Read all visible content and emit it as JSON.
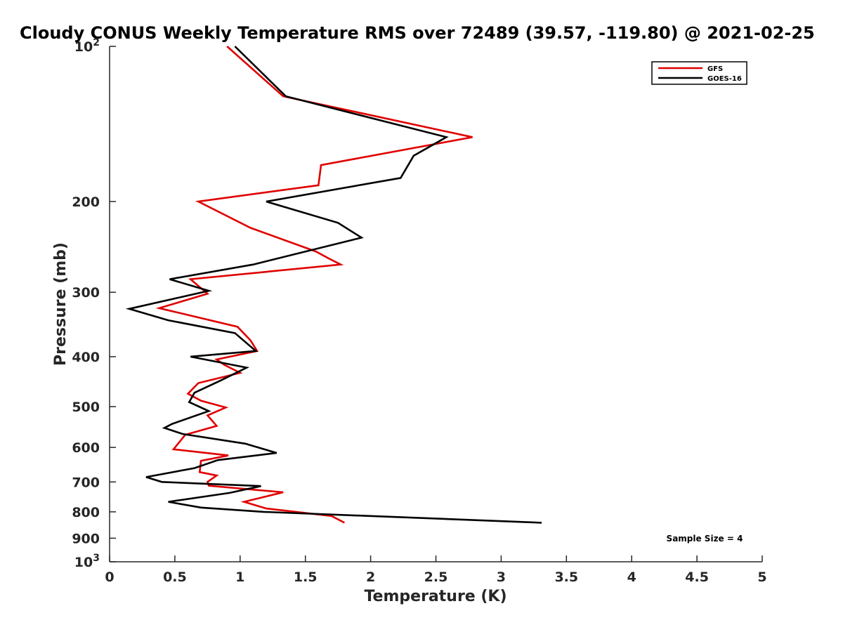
{
  "chart_data": {
    "type": "line",
    "title": "Cloudy CONUS Weekly Temperature RMS over 72489 (39.57, -119.80) @ 2021-02-25",
    "xlabel": "Temperature (K)",
    "ylabel": "Pressure (mb)",
    "xlim": [
      0,
      5
    ],
    "ylim": [
      100,
      1000
    ],
    "yscale": "log",
    "y_reversed": true,
    "xticks": [
      0,
      0.5,
      1,
      1.5,
      2,
      2.5,
      3,
      3.5,
      4,
      4.5,
      5
    ],
    "xtick_labels": [
      "0",
      "0.5",
      "1",
      "1.5",
      "2",
      "2.5",
      "3",
      "3.5",
      "4",
      "4.5",
      "5"
    ],
    "yticks": [
      {
        "value": 100,
        "base": "10",
        "exp": "2"
      },
      {
        "value": 200,
        "label": "200"
      },
      {
        "value": 300,
        "label": "300"
      },
      {
        "value": 400,
        "label": "400"
      },
      {
        "value": 500,
        "label": "500"
      },
      {
        "value": 600,
        "label": "600"
      },
      {
        "value": 700,
        "label": "700"
      },
      {
        "value": 800,
        "label": "800"
      },
      {
        "value": 900,
        "label": "900"
      },
      {
        "value": 1000,
        "base": "10",
        "exp": "3"
      }
    ],
    "legend_position": "top-right",
    "grid": false,
    "annotation": "Sample Size = 4",
    "series": [
      {
        "name": "GFS",
        "color": "#e00000",
        "points": [
          [
            0.9,
            100
          ],
          [
            1.33,
            125
          ],
          [
            2.78,
            150
          ],
          [
            1.62,
            170
          ],
          [
            1.6,
            186
          ],
          [
            0.68,
            200
          ],
          [
            1.08,
            225
          ],
          [
            1.58,
            250
          ],
          [
            1.68,
            258
          ],
          [
            1.77,
            265
          ],
          [
            0.62,
            283
          ],
          [
            0.75,
            302
          ],
          [
            0.38,
            322
          ],
          [
            0.98,
            350
          ],
          [
            1.08,
            372
          ],
          [
            1.13,
            390
          ],
          [
            0.82,
            405
          ],
          [
            0.88,
            415
          ],
          [
            1.0,
            430
          ],
          [
            0.68,
            450
          ],
          [
            0.6,
            472
          ],
          [
            0.7,
            487
          ],
          [
            0.89,
            502
          ],
          [
            0.75,
            520
          ],
          [
            0.82,
            545
          ],
          [
            0.58,
            567
          ],
          [
            0.49,
            605
          ],
          [
            0.91,
            622
          ],
          [
            0.7,
            637
          ],
          [
            0.69,
            670
          ],
          [
            0.82,
            680
          ],
          [
            0.75,
            700
          ],
          [
            0.76,
            712
          ],
          [
            1.33,
            733
          ],
          [
            1.03,
            765
          ],
          [
            1.2,
            788
          ],
          [
            1.7,
            815
          ],
          [
            1.8,
            840
          ]
        ]
      },
      {
        "name": "GOES-16",
        "color": "#000000",
        "points": [
          [
            0.96,
            100
          ],
          [
            1.35,
            125
          ],
          [
            2.58,
            150
          ],
          [
            2.33,
            163
          ],
          [
            2.23,
            180
          ],
          [
            1.2,
            200
          ],
          [
            1.75,
            220
          ],
          [
            1.93,
            235
          ],
          [
            1.1,
            265
          ],
          [
            0.46,
            283
          ],
          [
            0.76,
            298
          ],
          [
            0.15,
            323
          ],
          [
            0.45,
            340
          ],
          [
            0.96,
            360
          ],
          [
            1.12,
            390
          ],
          [
            0.62,
            400
          ],
          [
            1.05,
            420
          ],
          [
            0.85,
            445
          ],
          [
            0.65,
            470
          ],
          [
            0.61,
            490
          ],
          [
            0.76,
            510
          ],
          [
            0.48,
            540
          ],
          [
            0.42,
            550
          ],
          [
            0.56,
            565
          ],
          [
            1.04,
            590
          ],
          [
            1.28,
            615
          ],
          [
            0.83,
            635
          ],
          [
            0.65,
            658
          ],
          [
            0.28,
            685
          ],
          [
            0.4,
            700
          ],
          [
            1.16,
            713
          ],
          [
            0.92,
            735
          ],
          [
            0.45,
            765
          ],
          [
            0.7,
            785
          ],
          [
            1.18,
            800
          ],
          [
            3.31,
            840
          ]
        ]
      }
    ]
  }
}
